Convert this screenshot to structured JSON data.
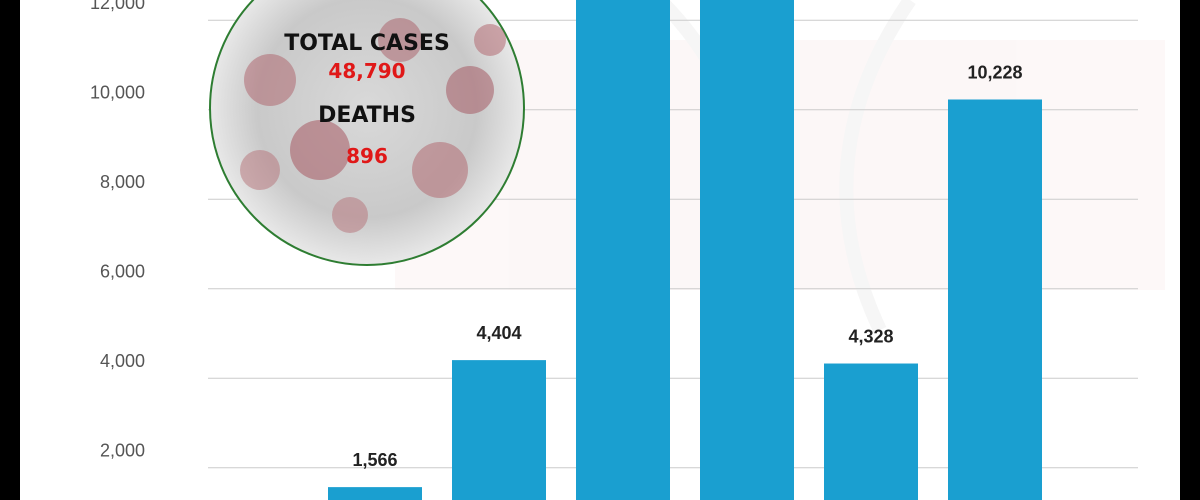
{
  "colors": {
    "bar": "#1a9fd0",
    "grid": "#cccccc",
    "inset_border": "#2e7d32",
    "stat_value": "#e01818"
  },
  "inset": {
    "total_cases_label": "TOTAL CASES",
    "total_cases_value": "48,790",
    "deaths_label": "DEATHS",
    "deaths_value": "896",
    "image": "coronavirus-illustration"
  },
  "chart_data": {
    "type": "bar",
    "ylim": [
      0,
      13000
    ],
    "yticks": [
      2000,
      4000,
      6000,
      8000,
      10000,
      12000
    ],
    "ytick_labels": [
      "2,000",
      "4,000",
      "6,000",
      "8,000",
      "10,000",
      "12,000"
    ],
    "grid": true,
    "values": [
      null,
      null,
      1566,
      4404,
      13500,
      13500,
      4328,
      10228
    ],
    "data_labels": [
      "",
      "",
      "1,566",
      "4,404",
      "",
      "",
      "4,328",
      "10,228"
    ]
  }
}
